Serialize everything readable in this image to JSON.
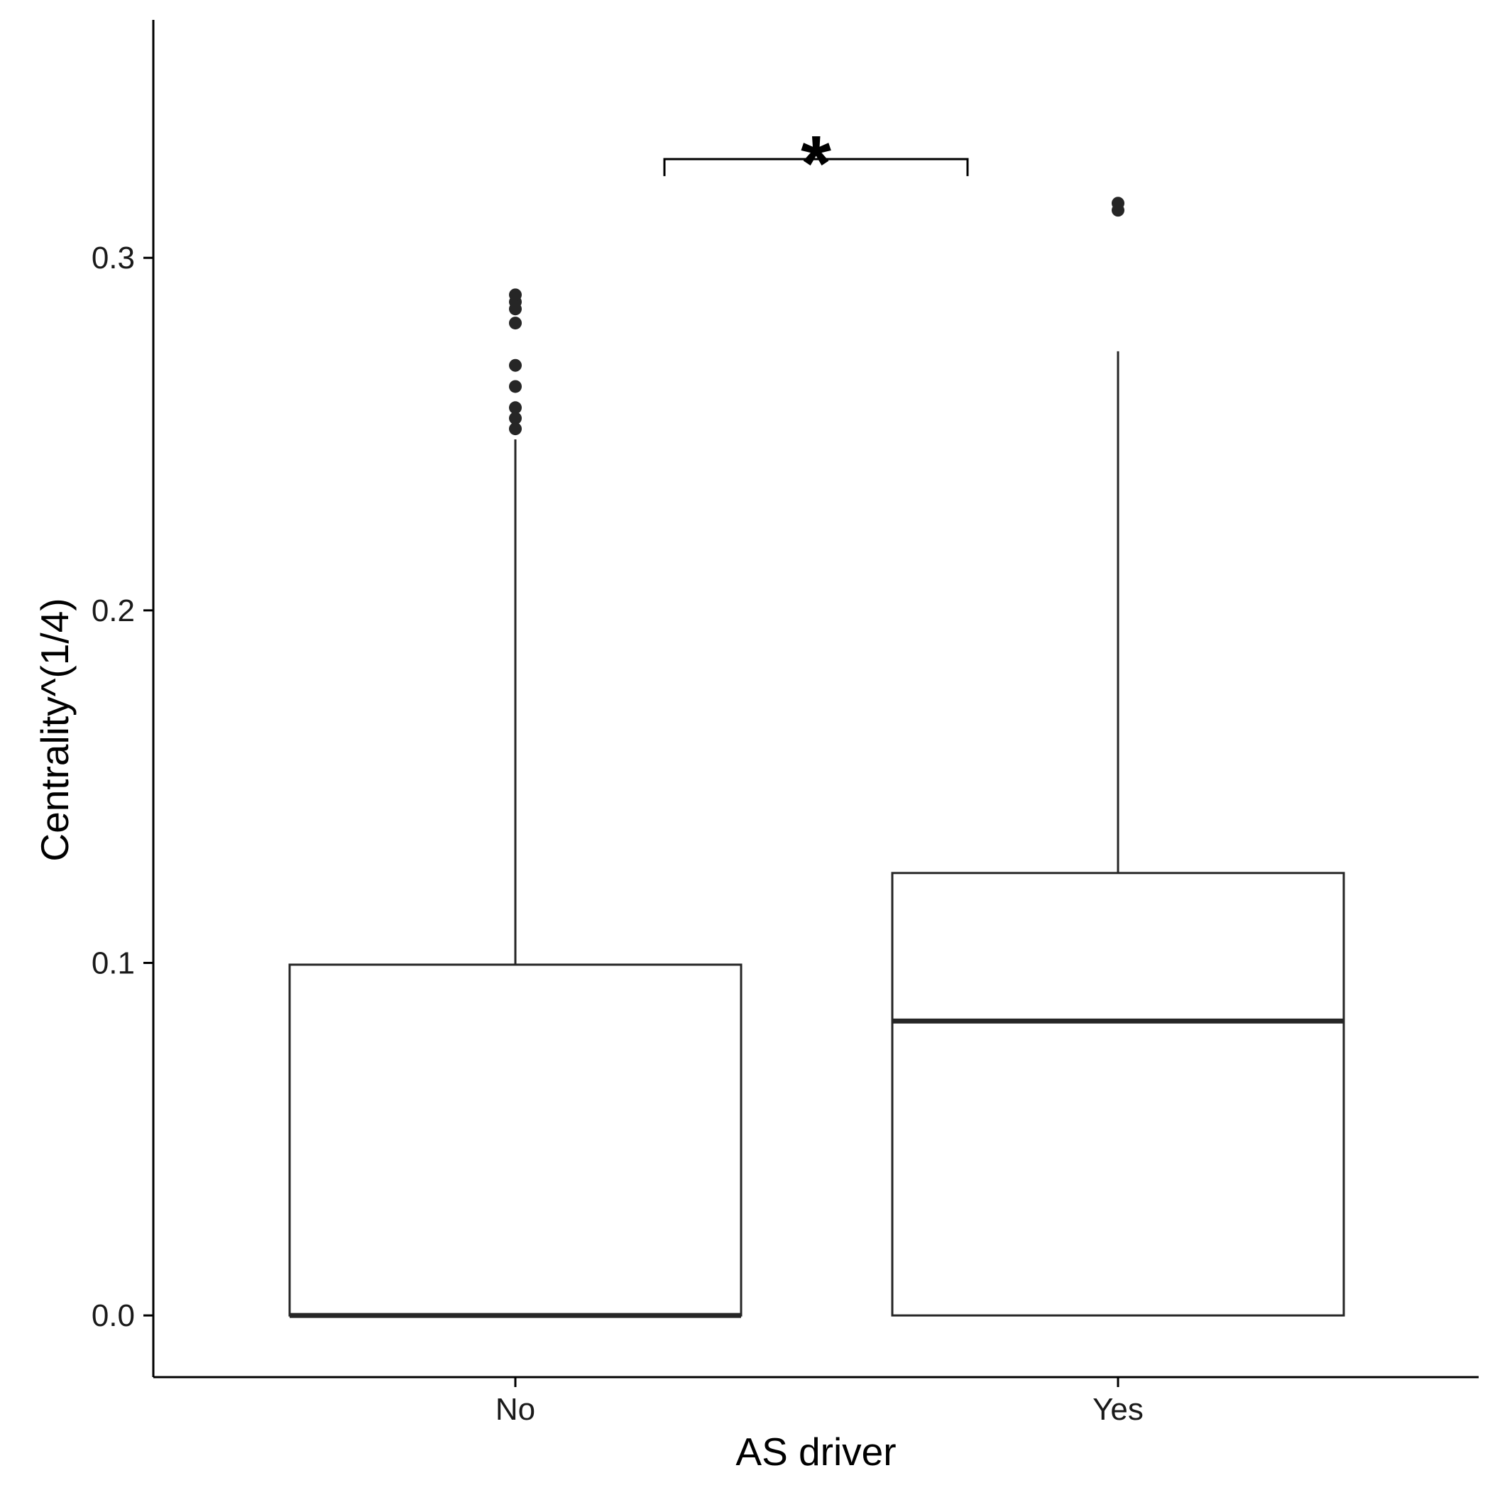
{
  "chart_data": {
    "type": "box",
    "xlabel": "AS driver",
    "ylabel": "Centrality^(1/4)",
    "categories": [
      "No",
      "Yes"
    ],
    "ylim": [
      -0.0175,
      0.3675
    ],
    "yticks": [
      0.0,
      0.1,
      0.2,
      0.3
    ],
    "ytick_labels": [
      "0.0",
      "0.1",
      "0.2",
      "0.3"
    ],
    "grid": false,
    "legend": "none",
    "boxes": [
      {
        "category": "No",
        "whisker_low": 0.0,
        "q1": 0.0,
        "median": 0.0,
        "q3": 0.0995,
        "whisker_high": 0.2485,
        "outliers": [
          0.2515,
          0.2545,
          0.2575,
          0.2635,
          0.2695,
          0.2815,
          0.2855,
          0.2875,
          0.2895
        ]
      },
      {
        "category": "Yes",
        "whisker_low": 0.0,
        "q1": 0.0,
        "median": 0.0835,
        "q3": 0.1255,
        "whisker_high": 0.2735,
        "outliers": [
          0.3135,
          0.3155
        ]
      }
    ],
    "significance": {
      "from": "No",
      "to": "Yes",
      "label": "*",
      "y": 0.328
    },
    "colors": {
      "box_stroke": "#262626",
      "box_fill": "#ffffff",
      "axis": "#000000",
      "outlier": "#262626"
    }
  }
}
